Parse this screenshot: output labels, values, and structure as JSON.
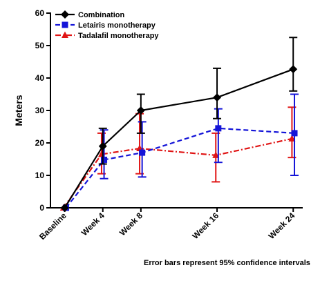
{
  "chart_data": {
    "type": "line",
    "title": "",
    "xlabel": "",
    "ylabel": "Meters",
    "ylim": [
      0,
      60
    ],
    "yticks": [
      0,
      10,
      20,
      30,
      40,
      50,
      60
    ],
    "categories": [
      "Baseline",
      "Week 4",
      "Week 8",
      "Week 16",
      "Week 24"
    ],
    "x_weeks": [
      0,
      4,
      8,
      16,
      24
    ],
    "grid": false,
    "legend_position": "top-left",
    "series": [
      {
        "name": "Combination",
        "color": "#000000",
        "marker": "diamond",
        "line_style": "solid",
        "values": [
          0,
          19,
          30,
          34,
          42.7
        ],
        "ci_low": [
          0,
          13.5,
          23,
          27.5,
          36
        ],
        "ci_high": [
          0,
          24.5,
          35,
          43,
          52.5
        ]
      },
      {
        "name": "Letairis monotherapy",
        "color": "#1414d8",
        "marker": "square",
        "line_style": "dashed",
        "values": [
          0,
          14.8,
          17,
          24.5,
          23
        ],
        "ci_low": [
          0,
          9,
          9.5,
          14,
          10
        ],
        "ci_high": [
          0,
          24,
          26.5,
          30.5,
          35
        ]
      },
      {
        "name": "Tadalafil monotherapy",
        "color": "#e01414",
        "marker": "triangle",
        "line_style": "dashdot",
        "values": [
          0,
          16.5,
          18.3,
          16.2,
          21.3
        ],
        "ci_low": [
          0,
          10.5,
          10.5,
          8,
          15.5
        ],
        "ci_high": [
          0,
          23,
          29,
          23,
          31
        ]
      }
    ],
    "annotation": "Error bars represent 95% confidence intervals"
  }
}
